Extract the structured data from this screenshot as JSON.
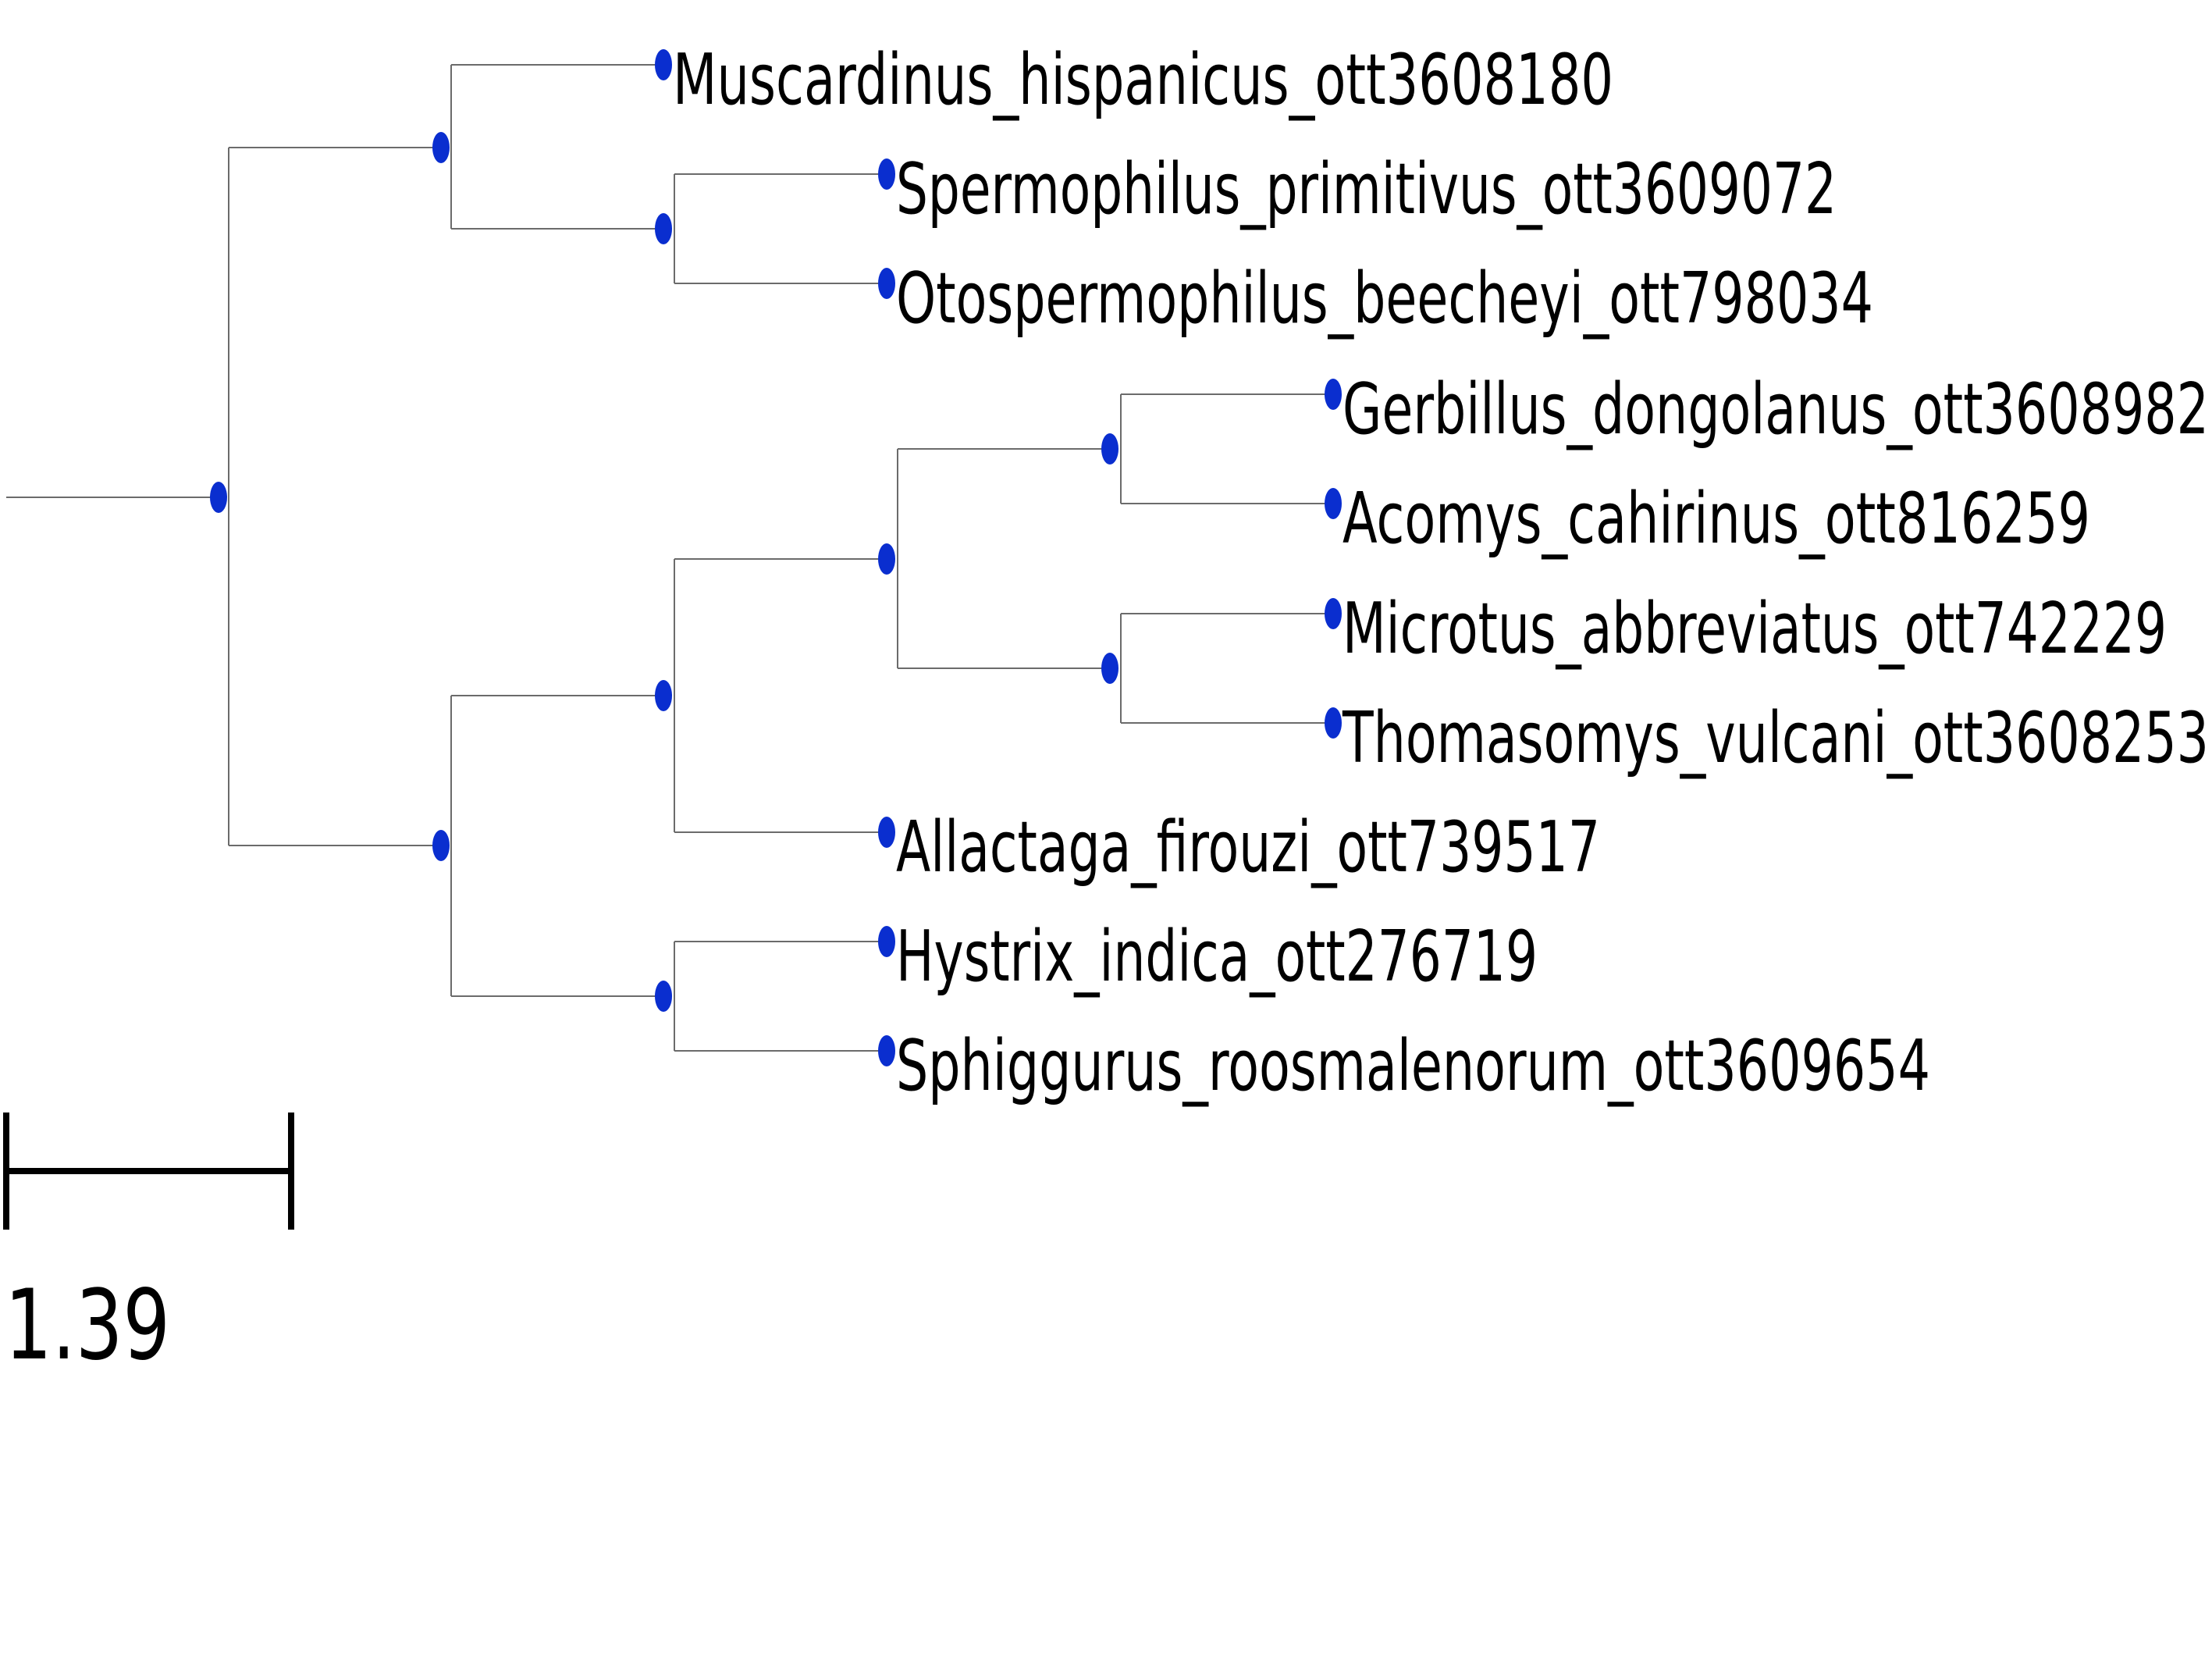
{
  "tree": {
    "branch_color": "#6b6b6b",
    "node_color": "#0a2ecf",
    "label_color": "#000000",
    "leaves": [
      {
        "id": "muscardinus",
        "label": "Muscardinus_hispanicus_ott3608180"
      },
      {
        "id": "spermophilus",
        "label": "Spermophilus_primitivus_ott3609072"
      },
      {
        "id": "otospermophilus",
        "label": "Otospermophilus_beecheyi_ott798034"
      },
      {
        "id": "gerbillus",
        "label": "Gerbillus_dongolanus_ott3608982"
      },
      {
        "id": "acomys",
        "label": "Acomys_cahirinus_ott816259"
      },
      {
        "id": "microtus",
        "label": "Microtus_abbreviatus_ott742229"
      },
      {
        "id": "thomasomys",
        "label": "Thomasomys_vulcani_ott3608253"
      },
      {
        "id": "allactaga",
        "label": "Allactaga_firouzi_ott739517"
      },
      {
        "id": "hystrix",
        "label": "Hystrix_indica_ott276719"
      },
      {
        "id": "sphiggurus",
        "label": "Sphiggurus_roosmalenorum_ott3609654"
      }
    ]
  },
  "scale_bar": {
    "label": "1.39"
  }
}
